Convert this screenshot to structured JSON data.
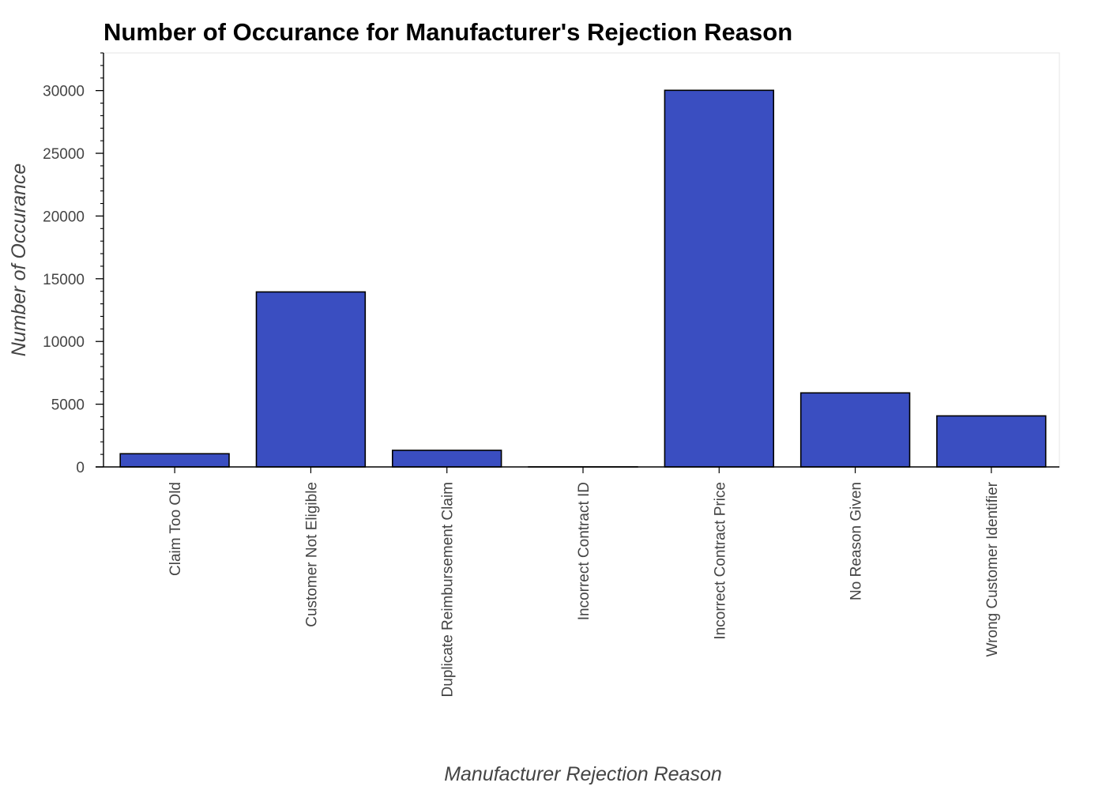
{
  "chart_data": {
    "type": "bar",
    "title": "Number of Occurance for Manufacturer's Rejection Reason",
    "xlabel": "Manufacturer Rejection Reason",
    "ylabel": "Number of Occurance",
    "categories": [
      "Claim Too Old",
      "Customer Not Eligible",
      "Duplicate Reimbursement Claim",
      "Incorrect Contract ID",
      "Incorrect Contract Price",
      "No Reason Given",
      "Wrong Customer Identifier"
    ],
    "values": [
      1050,
      13950,
      1320,
      5,
      30020,
      5900,
      4070
    ],
    "ylim": [
      0,
      33000
    ],
    "yticks": [
      "0",
      "5000",
      "10000",
      "15000",
      "20000",
      "25000",
      "30000"
    ],
    "grid": false,
    "legend": "none",
    "colors": {
      "bar_fill": "#3a4ec1",
      "bar_stroke": "#000000",
      "axis": "#000000",
      "frame": "#e5e5e5",
      "text": "#444444"
    }
  }
}
